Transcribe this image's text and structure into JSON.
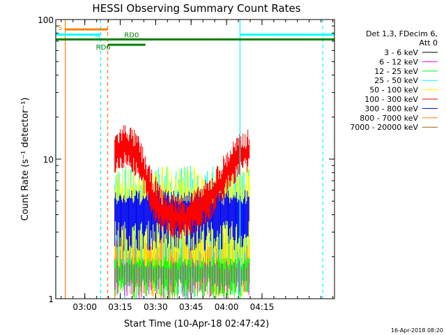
{
  "chart_data": {
    "type": "line",
    "title": "HESSI Observing Summary Count Rates",
    "xlabel": "Start Time (10-Apr-18 02:47:42)",
    "ylabel": "Count Rate (s⁻¹ detector⁻¹)",
    "x_axis_unit": "minutes after 02:47:42",
    "xlim": [
      0,
      118
    ],
    "ylim": [
      1,
      100
    ],
    "y_scale": "log",
    "x_ticks": [
      {
        "value": 12.3,
        "label": "03:00"
      },
      {
        "value": 27.3,
        "label": "03:15"
      },
      {
        "value": 42.3,
        "label": "03:30"
      },
      {
        "value": 57.3,
        "label": "03:45"
      },
      {
        "value": 72.3,
        "label": "04:00"
      },
      {
        "value": 87.3,
        "label": "04:15"
      }
    ],
    "y_ticks": [
      {
        "value": 1,
        "label": "1"
      },
      {
        "value": 10,
        "label": "10"
      },
      {
        "value": 100,
        "label": "100"
      }
    ],
    "legend_header": [
      "Det 1,3, FDecim 6,",
      "Att 0"
    ],
    "legend_position": "right",
    "series": [
      {
        "name": "3 - 6 keV",
        "color": "#000000",
        "values": []
      },
      {
        "name": "6 - 12 keV",
        "color": "#ff00ff",
        "values": [
          {
            "range": [
              25,
              82
            ],
            "min": 1,
            "max": 1.9
          }
        ]
      },
      {
        "name": "12 - 25 keV",
        "color": "#00ff00",
        "values": [
          {
            "range": [
              25,
              82
            ],
            "min": 1,
            "max": 2
          }
        ]
      },
      {
        "name": "25 - 50 keV",
        "color": "#00ffff",
        "values": [
          {
            "range": [
              25,
              82
            ],
            "min": 1,
            "max": 9
          }
        ]
      },
      {
        "name": "50 - 100 keV",
        "color": "#ffff00",
        "values": [
          {
            "range": [
              25,
              82
            ],
            "min": 1,
            "max": 9
          }
        ]
      },
      {
        "name": "100 - 300 keV",
        "color": "#ff0000",
        "values": [
          {
            "x": 25,
            "y": 13
          },
          {
            "x": 30,
            "y": 15
          },
          {
            "x": 35,
            "y": 12
          },
          {
            "x": 40,
            "y": 7
          },
          {
            "x": 45,
            "y": 5
          },
          {
            "x": 50,
            "y": 4.5
          },
          {
            "x": 55,
            "y": 4.5
          },
          {
            "x": 60,
            "y": 5
          },
          {
            "x": 65,
            "y": 6
          },
          {
            "x": 70,
            "y": 8
          },
          {
            "x": 75,
            "y": 11
          },
          {
            "x": 80,
            "y": 13
          },
          {
            "x": 82,
            "y": 13
          }
        ]
      },
      {
        "name": "300 - 800 keV",
        "color": "#0000ff",
        "values": [
          {
            "range": [
              25,
              82
            ],
            "min": 2.2,
            "max": 6
          }
        ]
      },
      {
        "name": "800 - 7000 keV",
        "color": "#ff8000",
        "values": [
          {
            "range": [
              25,
              82
            ],
            "min": 1,
            "max": 3
          }
        ]
      },
      {
        "name": "7000 - 20000 keV",
        "color": "#996600",
        "values": []
      }
    ],
    "flags": [
      {
        "label": "S",
        "color": "#ff8000",
        "y": 85,
        "start": 4,
        "end": 22
      },
      {
        "label": "N",
        "color": "#00ffff",
        "y": 78,
        "start": 0,
        "end": 19
      },
      {
        "label": "N",
        "color": "#00ffff",
        "y": 78,
        "start": 78,
        "end": 118
      },
      {
        "label": "RD0",
        "color": "#008000",
        "y": 72,
        "start": 0,
        "end": 118
      },
      {
        "label": "RD6",
        "color": "#008000",
        "y": 66,
        "start": 22,
        "end": 38
      }
    ],
    "vertical_markers": [
      {
        "x": 0,
        "color": "#00ffff",
        "style": "solid"
      },
      {
        "x": 4,
        "color": "#ff8000",
        "style": "solid"
      },
      {
        "x": 19,
        "color": "#00ffff",
        "style": "dashed"
      },
      {
        "x": 22,
        "color": "#ff8000",
        "style": "dashed"
      },
      {
        "x": 78,
        "color": "#00ffff",
        "style": "solid"
      },
      {
        "x": 113,
        "color": "#00ffff",
        "style": "dashed"
      }
    ],
    "timestamp": "16-Apr-2018 08:20",
    "grid": false
  }
}
